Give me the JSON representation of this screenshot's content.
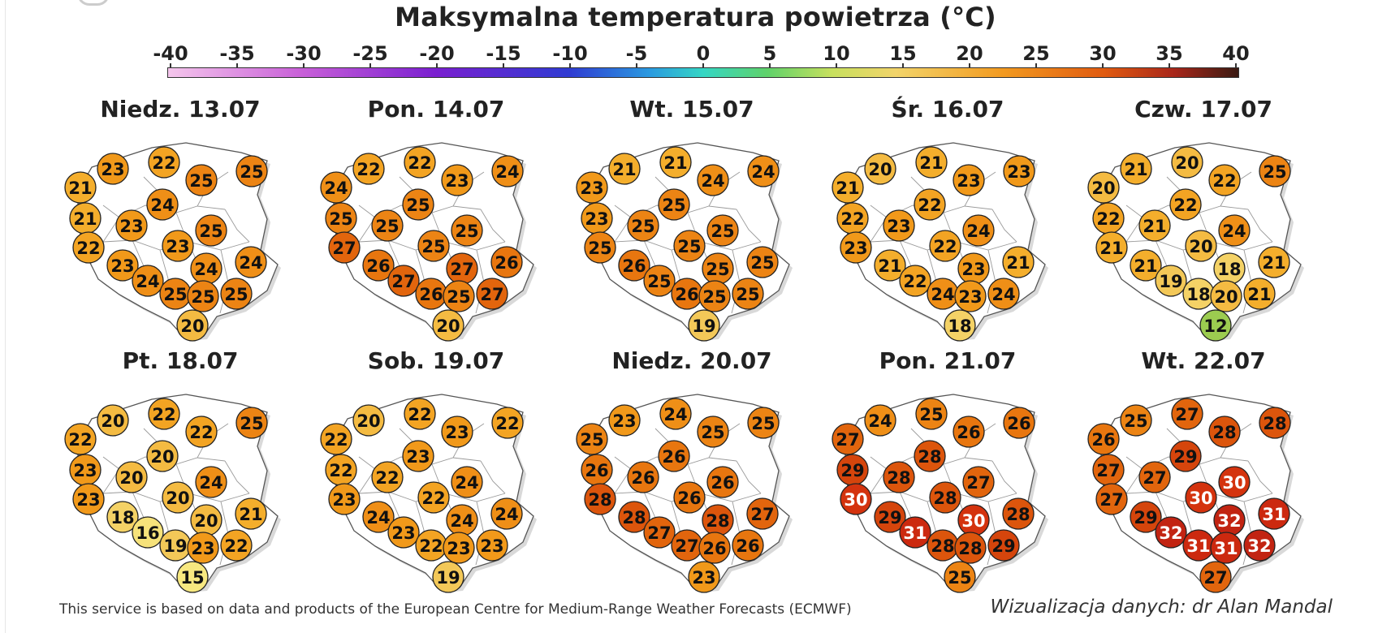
{
  "title": "Maksymalna temperatura powietrza (°C)",
  "colorbar": {
    "ticks": [
      "-40",
      "-35",
      "-30",
      "-25",
      "-20",
      "-15",
      "-10",
      "-5",
      "0",
      "5",
      "10",
      "15",
      "20",
      "25",
      "30",
      "35",
      "40"
    ],
    "range": [
      -40,
      40
    ],
    "colors": [
      "#f5c6ec",
      "#c85fd8",
      "#7a1fd0",
      "#2f3bd2",
      "#2a9ae0",
      "#35d6c4",
      "#5fd26a",
      "#c7e05e",
      "#f2d46a",
      "#f29a20",
      "#e05a10",
      "#a8261a",
      "#3a1a12"
    ]
  },
  "days": [
    {
      "label": "Niedz. 13.07",
      "temps": [
        23,
        22,
        25,
        21,
        24,
        25,
        21,
        23,
        25,
        22,
        23,
        24,
        23,
        24,
        24,
        25,
        25,
        25,
        20
      ]
    },
    {
      "label": "Pon. 14.07",
      "temps": [
        22,
        22,
        23,
        24,
        25,
        24,
        25,
        25,
        25,
        27,
        25,
        26,
        26,
        27,
        27,
        26,
        27,
        25,
        20
      ]
    },
    {
      "label": "Wt. 15.07",
      "temps": [
        21,
        21,
        24,
        23,
        25,
        24,
        23,
        25,
        25,
        25,
        25,
        25,
        26,
        25,
        25,
        26,
        25,
        25,
        19
      ]
    },
    {
      "label": "Śr. 16.07",
      "temps": [
        20,
        21,
        23,
        21,
        22,
        23,
        22,
        23,
        24,
        23,
        22,
        21,
        21,
        22,
        23,
        24,
        24,
        23,
        18
      ]
    },
    {
      "label": "Czw. 17.07",
      "temps": [
        21,
        20,
        22,
        20,
        22,
        25,
        22,
        21,
        24,
        21,
        20,
        21,
        21,
        19,
        18,
        18,
        21,
        20,
        12
      ]
    },
    {
      "label": "Pt. 18.07",
      "temps": [
        20,
        22,
        22,
        22,
        20,
        25,
        23,
        20,
        24,
        23,
        20,
        21,
        18,
        16,
        20,
        19,
        22,
        23,
        15
      ]
    },
    {
      "label": "Sob. 19.07",
      "temps": [
        20,
        22,
        23,
        22,
        23,
        22,
        22,
        22,
        24,
        23,
        22,
        24,
        24,
        23,
        24,
        22,
        23,
        23,
        19
      ]
    },
    {
      "label": "Niedz. 20.07",
      "temps": [
        23,
        24,
        25,
        25,
        26,
        25,
        26,
        26,
        26,
        28,
        26,
        27,
        28,
        27,
        28,
        27,
        26,
        26,
        23
      ]
    },
    {
      "label": "Pon. 21.07",
      "temps": [
        24,
        25,
        26,
        27,
        28,
        26,
        29,
        28,
        27,
        30,
        28,
        28,
        29,
        31,
        30,
        28,
        29,
        28,
        25
      ]
    },
    {
      "label": "Wt. 22.07",
      "temps": [
        25,
        27,
        28,
        26,
        29,
        28,
        27,
        27,
        30,
        27,
        30,
        31,
        29,
        32,
        32,
        31,
        32,
        31,
        27
      ]
    }
  ],
  "footnote": "This service is based on data and products of the European Centre for Medium-Range Weather Forecasts (ECMWF)",
  "credit": "Wizualizacja danych: dr Alan Mandal"
}
